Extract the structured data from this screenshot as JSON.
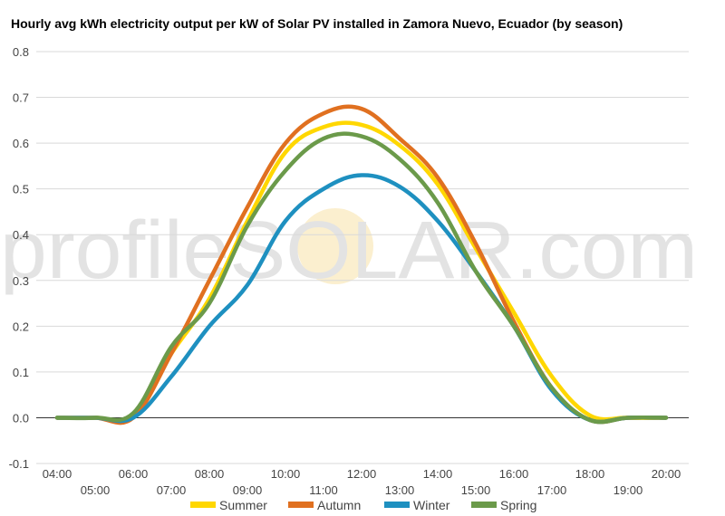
{
  "chart_data": {
    "type": "line",
    "title": "Hourly avg kWh electricity output per kW of Solar PV installed in Zamora Nuevo, Ecuador (by season)",
    "xlabel": "",
    "ylabel": "",
    "x": [
      "04:00",
      "05:00",
      "06:00",
      "07:00",
      "08:00",
      "09:00",
      "10:00",
      "11:00",
      "12:00",
      "13:00",
      "14:00",
      "15:00",
      "16:00",
      "17:00",
      "18:00",
      "19:00",
      "20:00"
    ],
    "ylim": [
      -0.1,
      0.8
    ],
    "yticks": [
      "-0.1",
      "0.0",
      "0.1",
      "0.2",
      "0.3",
      "0.4",
      "0.5",
      "0.6",
      "0.7",
      "0.8"
    ],
    "grid": true,
    "legend_position": "bottom",
    "series": [
      {
        "name": "Summer",
        "color": "#FFD700",
        "values": [
          0,
          0,
          0.005,
          0.14,
          0.26,
          0.43,
          0.58,
          0.635,
          0.64,
          0.595,
          0.51,
          0.37,
          0.23,
          0.09,
          0.005,
          0,
          0
        ]
      },
      {
        "name": "Autumn",
        "color": "#E07020",
        "values": [
          0,
          0,
          0.0,
          0.14,
          0.3,
          0.46,
          0.6,
          0.665,
          0.675,
          0.61,
          0.525,
          0.38,
          0.21,
          0.065,
          -0.005,
          0,
          0
        ]
      },
      {
        "name": "Winter",
        "color": "#1E90C0",
        "values": [
          0,
          0,
          0.0,
          0.09,
          0.2,
          0.29,
          0.43,
          0.5,
          0.53,
          0.505,
          0.43,
          0.32,
          0.2,
          0.06,
          -0.005,
          0,
          0
        ]
      },
      {
        "name": "Spring",
        "color": "#6B9A4A",
        "values": [
          0,
          0,
          0.01,
          0.155,
          0.25,
          0.42,
          0.54,
          0.61,
          0.615,
          0.565,
          0.47,
          0.32,
          0.2,
          0.065,
          -0.005,
          0,
          0
        ]
      }
    ]
  },
  "watermark": {
    "text": "profileSOLAR.com"
  }
}
